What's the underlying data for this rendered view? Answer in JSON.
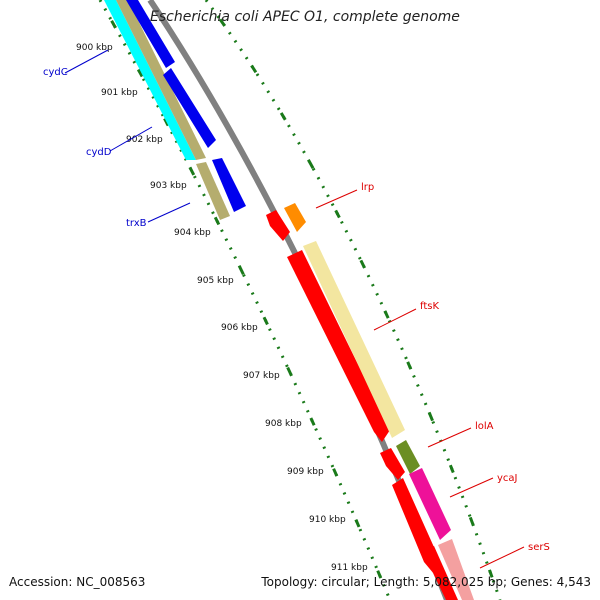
{
  "title": "Escherichia coli APEC O1, complete genome",
  "accession": "Accession: NC_008563",
  "topology": "Topology: circular; Length: 5,082,025 bp; Genes: 4,543",
  "ticks": [
    "900 kbp",
    "901 kbp",
    "902 kbp",
    "903 kbp",
    "904 kbp",
    "905 kbp",
    "906 kbp",
    "907 kbp",
    "908 kbp",
    "909 kbp",
    "910 kbp",
    "911 kbp"
  ],
  "genes": [
    {
      "name": "cydC",
      "color": "#0000cc"
    },
    {
      "name": "cydD",
      "color": "#0000cc"
    },
    {
      "name": "trxB",
      "color": "#0000cc"
    },
    {
      "name": "lrp",
      "color": "#dd0000"
    },
    {
      "name": "ftsK",
      "color": "#dd0000"
    },
    {
      "name": "lolA",
      "color": "#dd0000"
    },
    {
      "name": "ycaJ",
      "color": "#dd0000"
    },
    {
      "name": "serS",
      "color": "#dd0000"
    }
  ],
  "colors": {
    "backbone": "#808080",
    "tick": "#1a7a1a",
    "cyan": "#00ffff",
    "khaki": "#b5ad6e",
    "blue": "#0000ee",
    "red": "#ff0000",
    "orange": "#ff8c00",
    "paleyellow": "#f3e6a0",
    "olive": "#6b8e23",
    "magenta": "#ee1199",
    "pink": "#f4a0a0"
  }
}
